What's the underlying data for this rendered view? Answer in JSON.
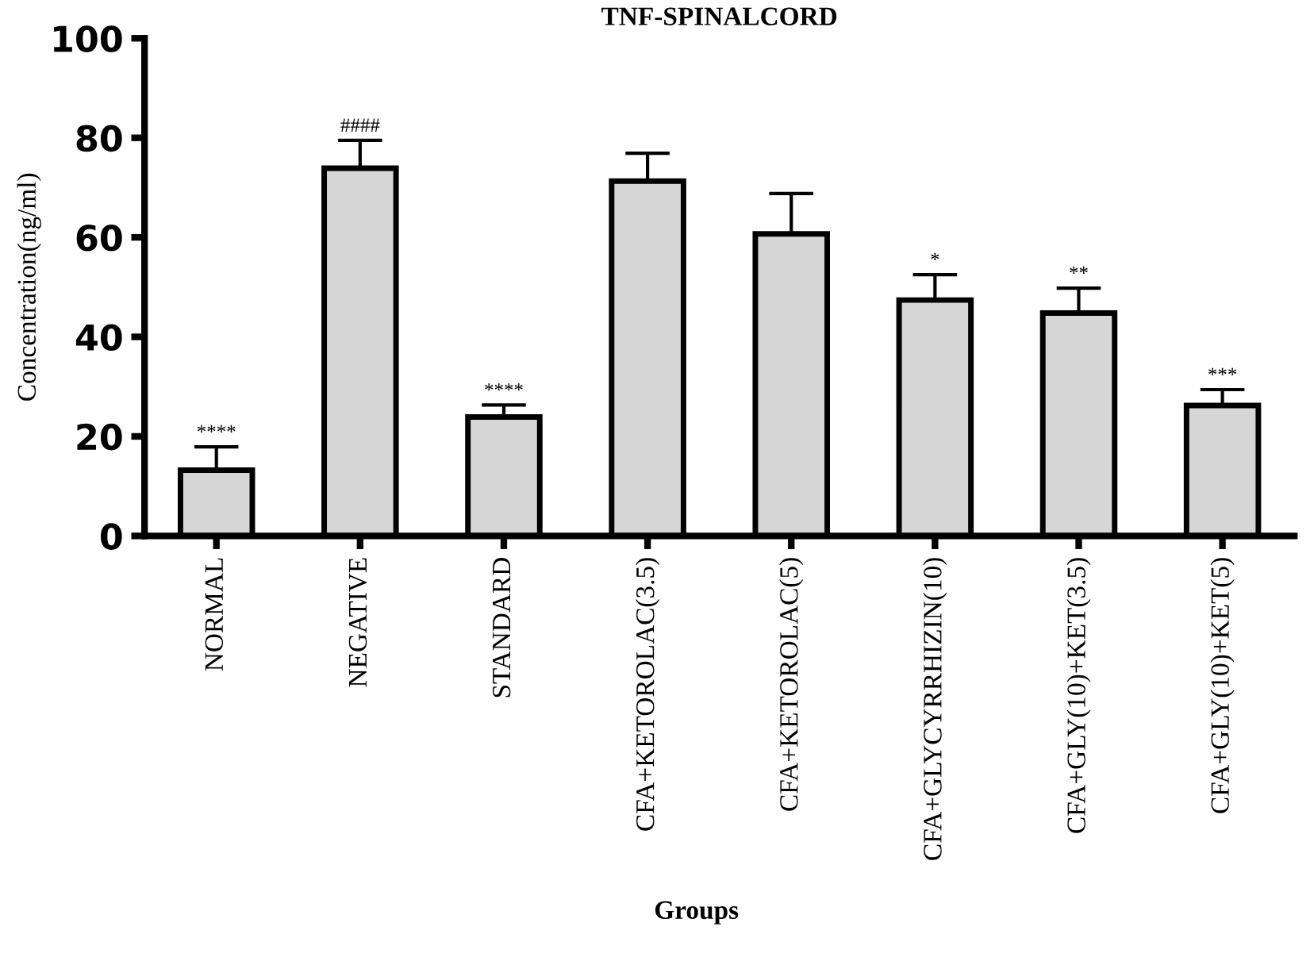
{
  "chart_data": {
    "type": "bar",
    "title": "TNF-SPINALCORD",
    "xlabel": "Groups",
    "ylabel": "Concentration(ng/ml)",
    "categories": [
      "NORMAL",
      "NEGATIVE",
      "STANDARD",
      "CFA+KETOROLAC(3.5)",
      "CFA+KETOROLAC(5)",
      "CFA+GLYCYRRHIZIN(10)",
      "CFA+GLY(10)+KET(3.5)",
      "CFA+GLY(10)+KET(5)"
    ],
    "values": [
      13.2,
      73.9,
      23.9,
      71.3,
      60.7,
      47.4,
      44.8,
      26.2
    ],
    "errors": [
      4.7,
      5.6,
      2.4,
      5.6,
      8.1,
      5.1,
      5.0,
      3.2
    ],
    "color": "#d6d6d6",
    "ylim": [
      0,
      100
    ],
    "yticks": [
      0,
      20,
      40,
      60,
      80,
      100
    ],
    "grid": false,
    "annotations": [
      {
        "text": "****",
        "x": "NORMAL",
        "y": 17.9
      },
      {
        "text": "####",
        "x": "NEGATIVE",
        "y": 79.5
      },
      {
        "text": "****",
        "x": "STANDARD",
        "y": 26.3
      },
      {
        "text": "*",
        "x": "CFA+GLYCYRRHIZIN(10)",
        "y": 52.5
      },
      {
        "text": "**",
        "x": "CFA+GLY(10)+KET(3.5)",
        "y": 49.8
      },
      {
        "text": "***",
        "x": "CFA+GLY(10)+KET(5)",
        "y": 29.4
      }
    ]
  }
}
